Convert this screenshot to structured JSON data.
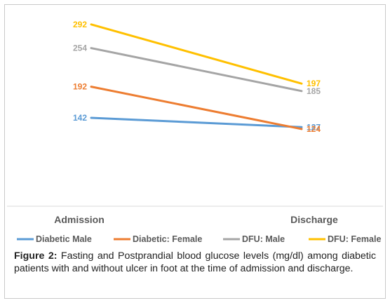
{
  "chart_data": {
    "type": "line",
    "categories": [
      "Admission",
      "Discharge"
    ],
    "series": [
      {
        "name": "Diabetic Male",
        "values": [
          142,
          127
        ],
        "labels": [
          "142",
          "127"
        ],
        "color": "#5b9bd5"
      },
      {
        "name": "Diabetic: Female",
        "values": [
          192,
          124
        ],
        "labels": [
          "192",
          "124"
        ],
        "color": "#ed7d31"
      },
      {
        "name": "DFU: Male",
        "values": [
          254,
          185
        ],
        "labels": [
          "254",
          "185"
        ],
        "color": "#a5a5a5"
      },
      {
        "name": "DFU: Female",
        "values": [
          292,
          197
        ],
        "labels": [
          "292",
          "197"
        ],
        "color": "#ffc000"
      }
    ],
    "ylim": [
      0,
      320
    ],
    "grid": false,
    "legend": "bottom"
  },
  "caption": {
    "label": "Figure 2:",
    "text": " Fasting and Postprandial blood glucose levels (mg/dl) among diabetic patients with and without ulcer in foot at the time of admission and discharge."
  }
}
